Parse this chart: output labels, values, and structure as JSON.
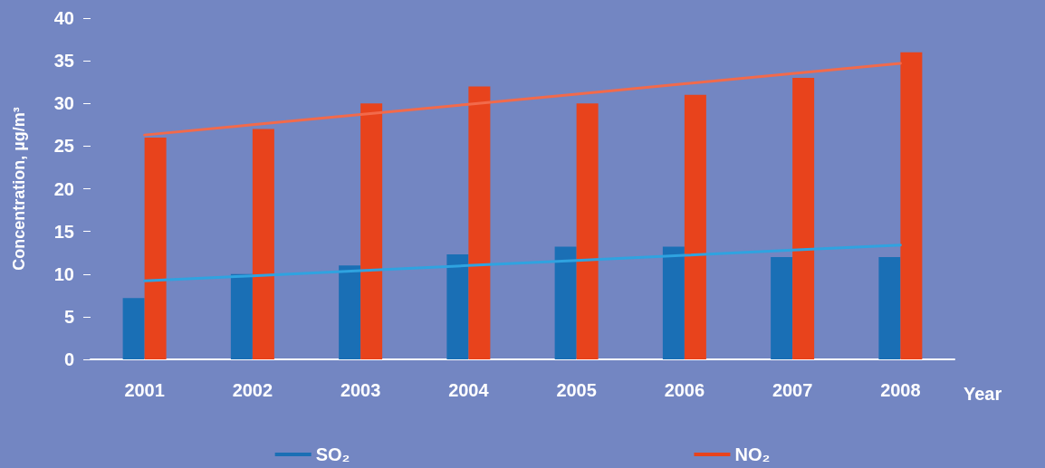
{
  "chart_data": {
    "type": "bar",
    "xlabel": "Year",
    "ylabel": "Concentration, µg/m³",
    "categories": [
      "2001",
      "2002",
      "2003",
      "2004",
      "2005",
      "2006",
      "2007",
      "2008"
    ],
    "series": [
      {
        "name": "SO₂",
        "color": "#1a6fb5",
        "values": [
          7.2,
          10,
          11,
          12.3,
          13.2,
          13.2,
          12,
          12
        ]
      },
      {
        "name": "NO₂",
        "color": "#e8431c",
        "values": [
          26,
          27,
          30,
          32,
          30,
          31,
          33,
          36
        ]
      },
      {
        "type": "line",
        "color": "#2fa3e0",
        "values": [
          9.2,
          9.8,
          10.4,
          11,
          11.6,
          12.2,
          12.8,
          13.4
        ]
      },
      {
        "type": "line",
        "color": "#f26a4b",
        "values": [
          26.3,
          27.5,
          28.7,
          29.9,
          31.1,
          32.3,
          33.5,
          34.7
        ]
      }
    ],
    "ylim": [
      0,
      40
    ],
    "yticks": [
      0,
      5,
      10,
      15,
      20,
      25,
      30,
      35,
      40
    ],
    "grid": false,
    "legend": "bottom"
  }
}
